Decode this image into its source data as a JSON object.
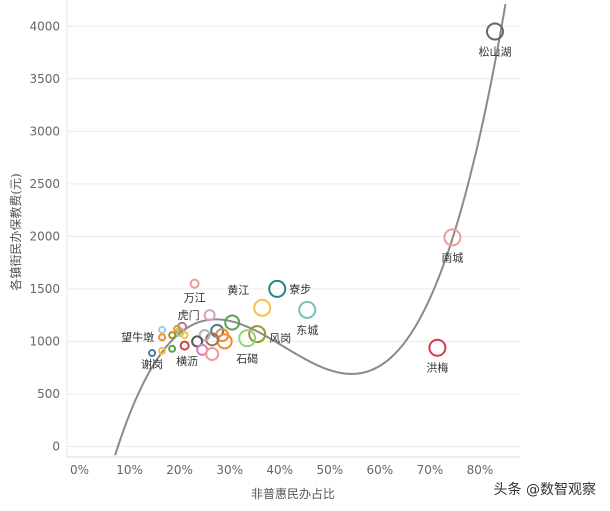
{
  "chart_data": {
    "type": "scatter",
    "xlabel": "非普惠民办占比",
    "ylabel": "各镇街民办保教费(元)",
    "xlim": [
      -0.025,
      0.88
    ],
    "ylim": [
      -100,
      4250
    ],
    "x_ticks": [
      "0%",
      "10%",
      "20%",
      "30%",
      "40%",
      "50%",
      "60%",
      "70%",
      "80%"
    ],
    "y_ticks": [
      "0",
      "500",
      "1000",
      "1500",
      "2000",
      "2500",
      "3000",
      "3500",
      "4000"
    ],
    "grid": true,
    "trendline": {
      "type": "polynomial",
      "degree": 3
    },
    "points": [
      {
        "label": "松山湖",
        "x": 0.83,
        "y": 3950,
        "color": "#666666",
        "size": 8
      },
      {
        "label": "南城",
        "x": 0.745,
        "y": 1990,
        "color": "#f19a9a",
        "size": 8
      },
      {
        "label": "洪梅",
        "x": 0.715,
        "y": 940,
        "color": "#d23f4a",
        "size": 8
      },
      {
        "label": "寮步",
        "x": 0.395,
        "y": 1500,
        "color": "#2a7f8f",
        "size": 8
      },
      {
        "label": "东城",
        "x": 0.455,
        "y": 1300,
        "color": "#7bbfb6",
        "size": 8
      },
      {
        "label": "黄江",
        "x": 0.365,
        "y": 1320,
        "color": "#f3c24a",
        "size": 8
      },
      {
        "label": "风岗",
        "x": 0.355,
        "y": 1070,
        "color": "#9c9628",
        "size": 8
      },
      {
        "label": "石碣",
        "x": 0.335,
        "y": 1030,
        "color": "#8fd47f",
        "size": 8
      },
      {
        "label": "万江",
        "x": 0.23,
        "y": 1550,
        "color": "#f19a9a",
        "size": 4
      },
      {
        "label": "虎门",
        "x": 0.26,
        "y": 1250,
        "color": "#d4a5c8",
        "size": 5
      },
      {
        "label": "",
        "x": 0.305,
        "y": 1180,
        "color": "#59a14f",
        "size": 7
      },
      {
        "label": "",
        "x": 0.275,
        "y": 1100,
        "color": "#4e79a7",
        "size": 6
      },
      {
        "label": "",
        "x": 0.285,
        "y": 1060,
        "color": "#f28e2b",
        "size": 6
      },
      {
        "label": "",
        "x": 0.29,
        "y": 1000,
        "color": "#f28e2b",
        "size": 7
      },
      {
        "label": "",
        "x": 0.265,
        "y": 1020,
        "color": "#9c755f",
        "size": 6
      },
      {
        "label": "",
        "x": 0.25,
        "y": 1060,
        "color": "#bab0ac",
        "size": 5
      },
      {
        "label": "",
        "x": 0.235,
        "y": 1000,
        "color": "#555555",
        "size": 5
      },
      {
        "label": "",
        "x": 0.245,
        "y": 920,
        "color": "#e377c2",
        "size": 5
      },
      {
        "label": "",
        "x": 0.265,
        "y": 880,
        "color": "#f19a9a",
        "size": 6
      },
      {
        "label": "",
        "x": 0.21,
        "y": 960,
        "color": "#d23f4a",
        "size": 4
      },
      {
        "label": "横沥",
        "x": 0.185,
        "y": 930,
        "color": "#59a14f",
        "size": 3
      },
      {
        "label": "",
        "x": 0.205,
        "y": 1140,
        "color": "#b07aa1",
        "size": 4
      },
      {
        "label": "",
        "x": 0.2,
        "y": 1090,
        "color": "#8fd47f",
        "size": 4
      },
      {
        "label": "",
        "x": 0.21,
        "y": 1060,
        "color": "#f3c24a",
        "size": 3
      },
      {
        "label": "",
        "x": 0.195,
        "y": 1120,
        "color": "#f28e2b",
        "size": 3
      },
      {
        "label": "",
        "x": 0.185,
        "y": 1060,
        "color": "#9c9628",
        "size": 3
      },
      {
        "label": "望牛墩",
        "x": 0.165,
        "y": 1040,
        "color": "#f28e2b",
        "size": 3
      },
      {
        "label": "",
        "x": 0.165,
        "y": 1110,
        "color": "#a0cbe8",
        "size": 3
      },
      {
        "label": "",
        "x": 0.165,
        "y": 910,
        "color": "#f3c24a",
        "size": 3
      },
      {
        "label": "谢岗",
        "x": 0.145,
        "y": 890,
        "color": "#4e79a7",
        "size": 3
      }
    ]
  },
  "watermark": "头条 @数智观察"
}
